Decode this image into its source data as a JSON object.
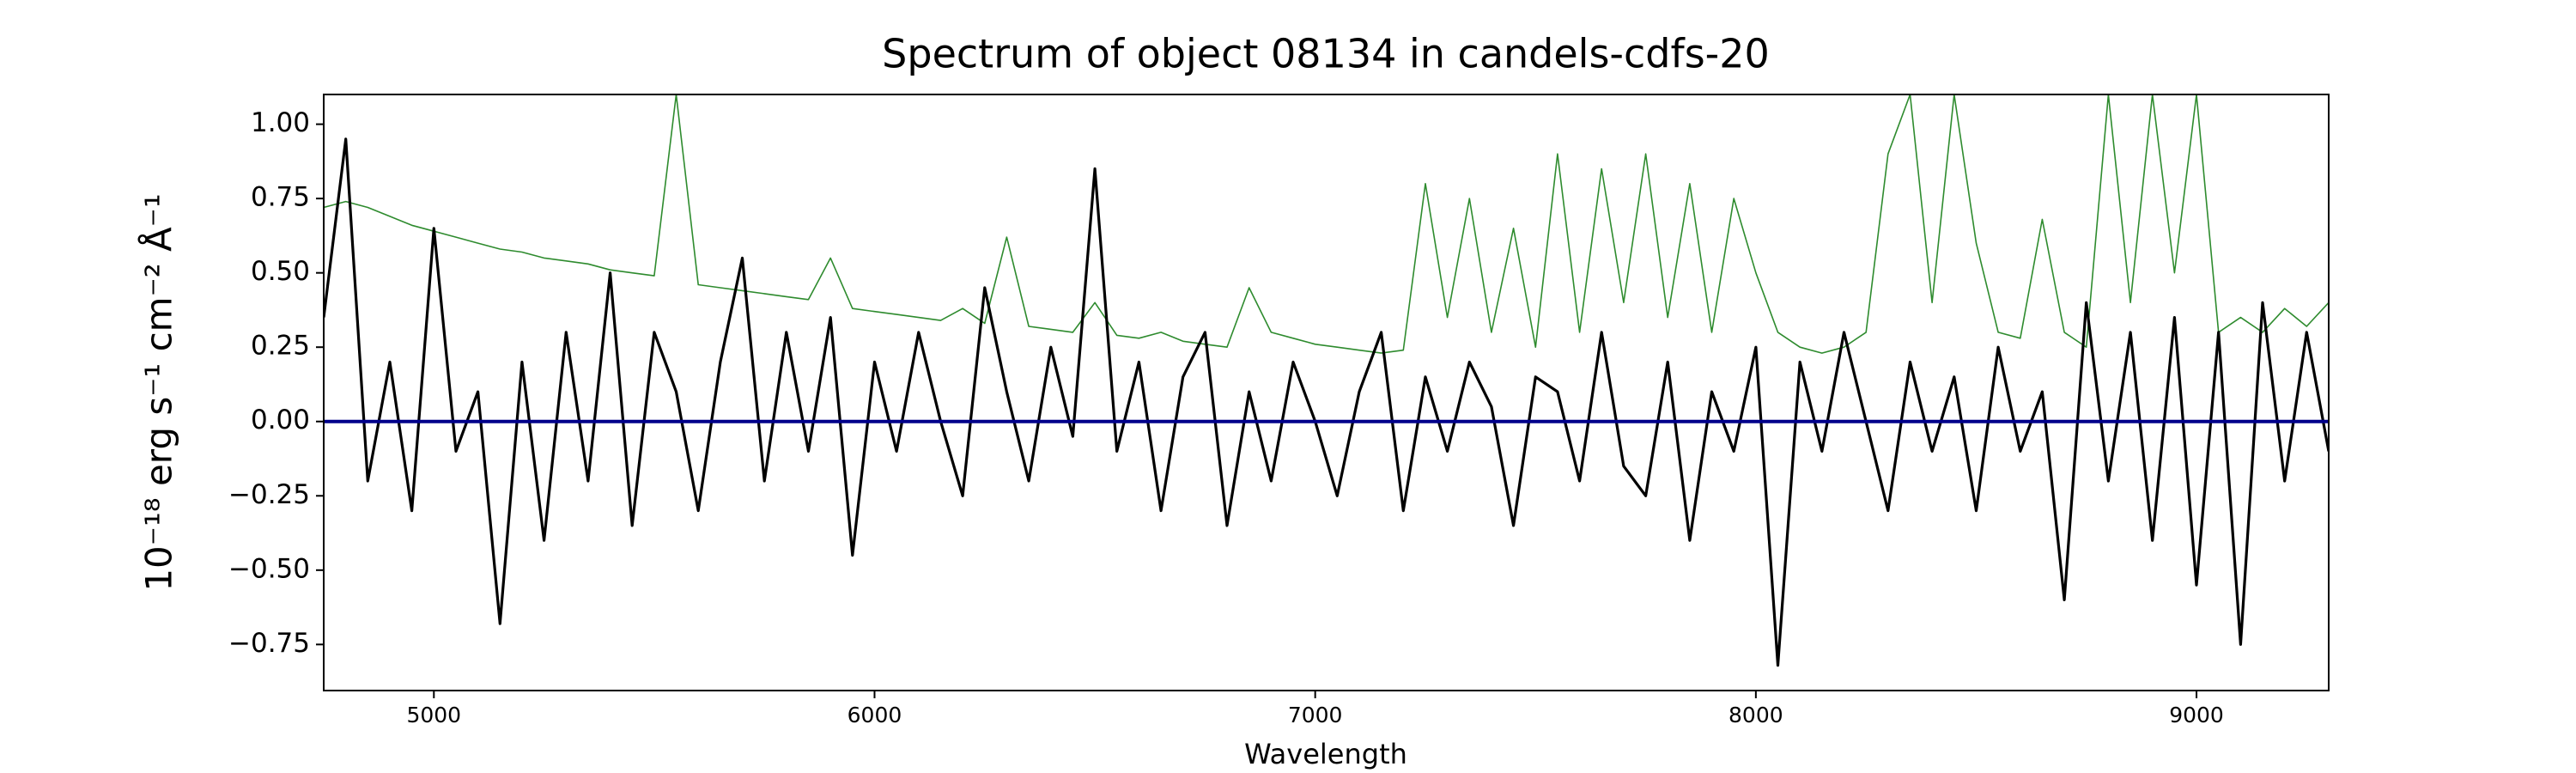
{
  "chart_data": {
    "type": "line",
    "title": "Spectrum of object 08134 in candels-cdfs-20",
    "xlabel": "Wavelength",
    "ylabel": "10⁻¹⁸ erg s⁻¹ cm⁻² Å⁻¹",
    "x": [
      4750,
      4800,
      4850,
      4900,
      4950,
      5000,
      5050,
      5100,
      5150,
      5200,
      5250,
      5300,
      5350,
      5400,
      5450,
      5500,
      5550,
      5600,
      5650,
      5700,
      5750,
      5800,
      5850,
      5900,
      5950,
      6000,
      6050,
      6100,
      6150,
      6200,
      6250,
      6300,
      6350,
      6400,
      6450,
      6500,
      6550,
      6600,
      6650,
      6700,
      6750,
      6800,
      6850,
      6900,
      6950,
      7000,
      7050,
      7100,
      7150,
      7200,
      7250,
      7300,
      7350,
      7400,
      7450,
      7500,
      7550,
      7600,
      7650,
      7700,
      7750,
      7800,
      7850,
      7900,
      7950,
      8000,
      8050,
      8100,
      8150,
      8200,
      8250,
      8300,
      8350,
      8400,
      8450,
      8500,
      8550,
      8600,
      8650,
      8700,
      8750,
      8800,
      8850,
      8900,
      8950,
      9000,
      9050,
      9100,
      9150,
      9200,
      9250,
      9300
    ],
    "series": [
      {
        "color": "#000000",
        "values": [
          0.35,
          0.95,
          -0.2,
          0.2,
          -0.3,
          0.65,
          -0.1,
          0.1,
          -0.68,
          0.2,
          -0.4,
          0.3,
          -0.2,
          0.5,
          -0.35,
          0.3,
          0.1,
          -0.3,
          0.2,
          0.55,
          -0.2,
          0.3,
          -0.1,
          0.35,
          -0.45,
          0.2,
          -0.1,
          0.3,
          0.0,
          -0.25,
          0.45,
          0.1,
          -0.2,
          0.25,
          -0.05,
          0.85,
          -0.1,
          0.2,
          -0.3,
          0.15,
          0.3,
          -0.35,
          0.1,
          -0.2,
          0.2,
          0.0,
          -0.25,
          0.1,
          0.3,
          -0.3,
          0.15,
          -0.1,
          0.2,
          0.05,
          -0.35,
          0.15,
          0.1,
          -0.2,
          0.3,
          -0.15,
          -0.25,
          0.2,
          -0.4,
          0.1,
          -0.1,
          0.25,
          -0.82,
          0.2,
          -0.1,
          0.3,
          0.0,
          -0.3,
          0.2,
          -0.1,
          0.15,
          -0.3,
          0.25,
          -0.1,
          0.1,
          -0.6,
          0.4,
          -0.2,
          0.3,
          -0.4,
          0.35,
          -0.55,
          0.3,
          -0.75,
          0.4,
          -0.2,
          0.3,
          -0.1
        ]
      },
      {
        "color": "#2e8b2e",
        "values": [
          0.72,
          0.74,
          0.72,
          0.69,
          0.66,
          0.64,
          0.62,
          0.6,
          0.58,
          0.57,
          0.55,
          0.54,
          0.53,
          0.51,
          0.5,
          0.49,
          1.1,
          0.46,
          0.45,
          0.44,
          0.43,
          0.42,
          0.41,
          0.55,
          0.38,
          0.37,
          0.36,
          0.35,
          0.34,
          0.38,
          0.33,
          0.62,
          0.32,
          0.31,
          0.3,
          0.4,
          0.29,
          0.28,
          0.3,
          0.27,
          0.26,
          0.25,
          0.45,
          0.3,
          0.28,
          0.26,
          0.25,
          0.24,
          0.23,
          0.24,
          0.8,
          0.35,
          0.75,
          0.3,
          0.65,
          0.25,
          0.9,
          0.3,
          0.85,
          0.4,
          0.9,
          0.35,
          0.8,
          0.3,
          0.75,
          0.5,
          0.3,
          0.25,
          0.23,
          0.25,
          0.3,
          0.9,
          1.1,
          0.4,
          1.1,
          0.6,
          0.3,
          0.28,
          0.68,
          0.3,
          0.25,
          1.1,
          0.4,
          1.1,
          0.5,
          1.1,
          0.3,
          0.35,
          0.3,
          0.38,
          0.32,
          0.4
        ]
      },
      {
        "color": "#00008b",
        "x": [
          4750,
          9300
        ],
        "values": [
          0,
          0
        ]
      }
    ],
    "xlim": [
      4750,
      9300
    ],
    "ylim": [
      -0.905,
      1.1
    ],
    "xticks": [
      5000,
      6000,
      7000,
      8000,
      9000
    ],
    "yticks": [
      {
        "value": -0.75,
        "label": "−0.75"
      },
      {
        "value": -0.5,
        "label": "−0.50"
      },
      {
        "value": -0.25,
        "label": "−0.25"
      },
      {
        "value": 0,
        "label": "0.00"
      },
      {
        "value": 0.25,
        "label": "0.25"
      },
      {
        "value": 0.5,
        "label": "0.50"
      },
      {
        "value": 0.75,
        "label": "0.75"
      },
      {
        "value": 1,
        "label": "1.00"
      }
    ],
    "grid": false
  }
}
